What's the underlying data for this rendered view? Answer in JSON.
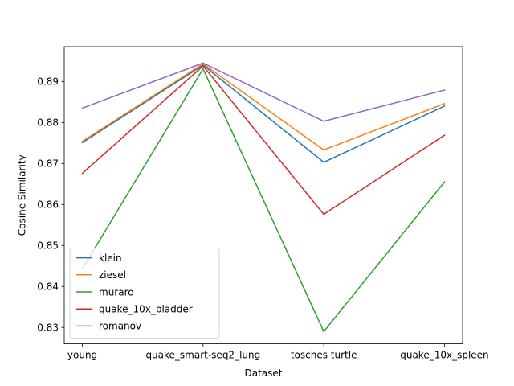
{
  "chart_data": {
    "type": "line",
    "title": "",
    "xlabel": "Dataset",
    "ylabel": "Cosine Similarity",
    "categories": [
      "young",
      "quake_smart-seq2_lung",
      "tosches turtle",
      "quake_10x_spleen"
    ],
    "ylim": [
      0.826,
      0.8985
    ],
    "yticks": [
      0.83,
      0.84,
      0.85,
      0.86,
      0.87,
      0.88,
      0.89
    ],
    "ytick_labels": [
      "0.83",
      "0.84",
      "0.85",
      "0.86",
      "0.87",
      "0.88",
      "0.89"
    ],
    "grid": false,
    "legend_position": "lower-left",
    "series": [
      {
        "name": "klein",
        "color": "#1f77b4",
        "values": [
          0.8751,
          0.894,
          0.8703,
          0.884
        ]
      },
      {
        "name": "ziesel",
        "color": "#ff7f0e",
        "values": [
          0.8754,
          0.8943,
          0.8733,
          0.8846
        ]
      },
      {
        "name": "muraro",
        "color": "#2ca02c",
        "values": [
          0.8443,
          0.8931,
          0.829,
          0.8655
        ]
      },
      {
        "name": "quake_10x_bladder",
        "color": "#d62728",
        "values": [
          0.8676,
          0.8938,
          0.8576,
          0.8769
        ]
      },
      {
        "name": "romanov",
        "color": "#9467bd",
        "values": [
          0.8835,
          0.8945,
          0.8803,
          0.8879
        ]
      }
    ]
  }
}
